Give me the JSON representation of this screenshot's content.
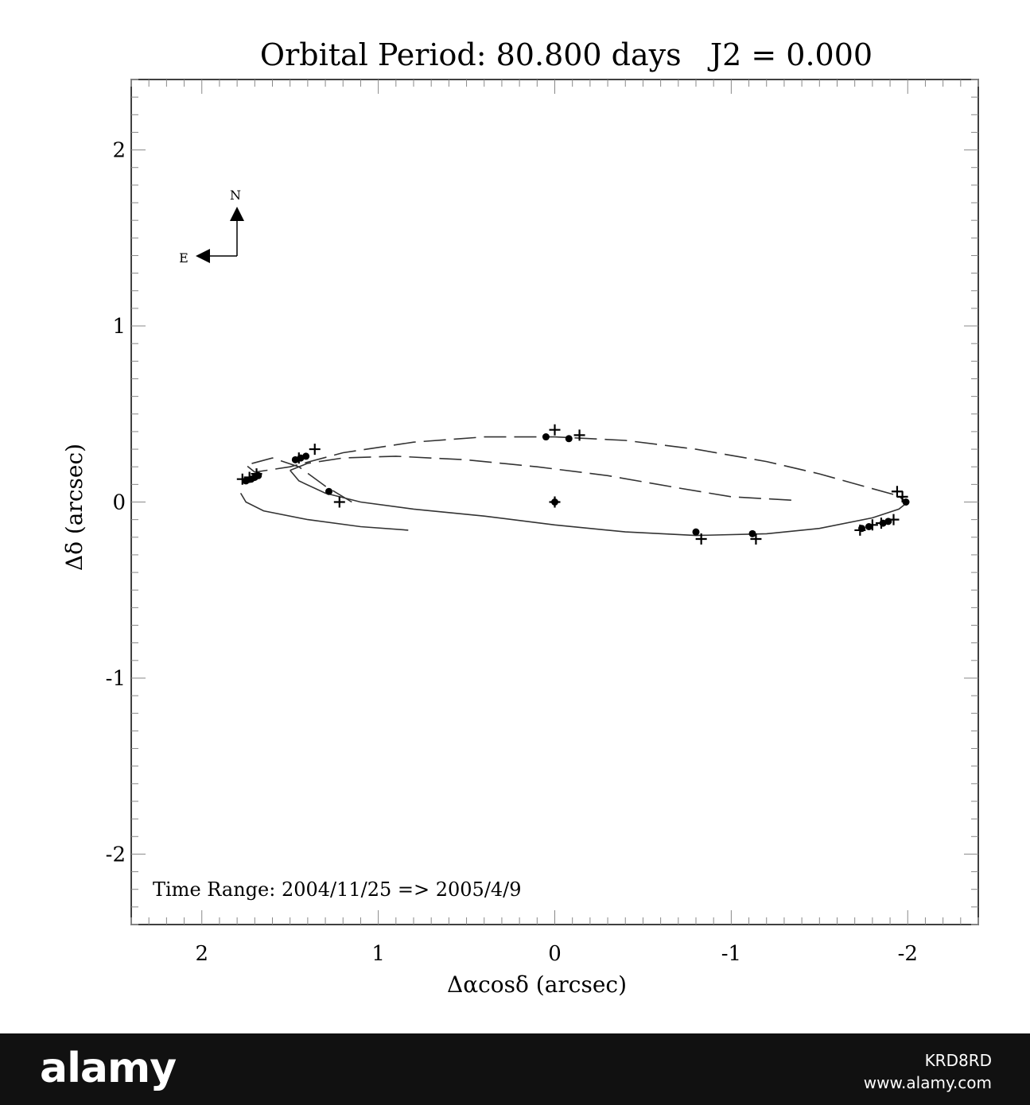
{
  "chart_data": {
    "type": "scatter",
    "title": "Orbital Period: 80.800 days   J2 = 0.000",
    "xlabel": "Δαcosδ (arcsec)",
    "ylabel": "Δδ (arcsec)",
    "xlim": [
      2.4,
      -2.4
    ],
    "ylim": [
      -2.4,
      2.4
    ],
    "xticks": [
      2,
      1,
      0,
      -1,
      -2
    ],
    "xtick_labels": [
      "2",
      "1",
      "0",
      "-1",
      "-2"
    ],
    "yticks": [
      2,
      1,
      0,
      -1,
      -2
    ],
    "ytick_labels": [
      "2",
      "1",
      "0",
      "-1",
      "-2"
    ],
    "annotation": "Time Range: 2004/11/25 => 2005/4/9",
    "compass": {
      "north": "N",
      "east": "E"
    },
    "orbit_dashed": [
      [
        1.15,
        0.0
      ],
      [
        1.3,
        0.09
      ],
      [
        1.45,
        0.2
      ],
      [
        1.6,
        0.25
      ],
      [
        1.75,
        0.21
      ],
      [
        1.7,
        0.17
      ],
      [
        1.5,
        0.2
      ],
      [
        1.2,
        0.28
      ],
      [
        0.8,
        0.34
      ],
      [
        0.4,
        0.37
      ],
      [
        0.0,
        0.37
      ],
      [
        -0.4,
        0.35
      ],
      [
        -0.8,
        0.3
      ],
      [
        -1.2,
        0.23
      ],
      [
        -1.5,
        0.16
      ],
      [
        -1.75,
        0.09
      ],
      [
        -1.93,
        0.04
      ],
      [
        -2.0,
        0.0
      ]
    ],
    "orbit_dashed_inner": [
      [
        1.5,
        0.18
      ],
      [
        1.4,
        0.22
      ],
      [
        1.2,
        0.25
      ],
      [
        0.9,
        0.26
      ],
      [
        0.5,
        0.24
      ],
      [
        0.1,
        0.2
      ],
      [
        -0.3,
        0.15
      ],
      [
        -0.7,
        0.08
      ],
      [
        -1.0,
        0.03
      ],
      [
        -1.35,
        0.01
      ]
    ],
    "orbit_solid": [
      [
        -2.0,
        0.0
      ],
      [
        -1.95,
        -0.04
      ],
      [
        -1.8,
        -0.09
      ],
      [
        -1.5,
        -0.15
      ],
      [
        -1.2,
        -0.18
      ],
      [
        -0.8,
        -0.19
      ],
      [
        -0.4,
        -0.17
      ],
      [
        0.0,
        -0.13
      ],
      [
        0.4,
        -0.08
      ],
      [
        0.8,
        -0.04
      ],
      [
        1.1,
        0.0
      ],
      [
        1.3,
        0.05
      ],
      [
        1.45,
        0.12
      ],
      [
        1.5,
        0.18
      ]
    ],
    "orbit_solid_tail": [
      [
        1.78,
        0.05
      ],
      [
        1.75,
        0.0
      ],
      [
        1.65,
        -0.05
      ],
      [
        1.4,
        -0.1
      ],
      [
        1.1,
        -0.14
      ],
      [
        0.83,
        -0.16
      ]
    ],
    "observed_points": [
      [
        1.75,
        0.12
      ],
      [
        1.72,
        0.13
      ],
      [
        1.7,
        0.14
      ],
      [
        1.68,
        0.15
      ],
      [
        1.47,
        0.24
      ],
      [
        1.44,
        0.25
      ],
      [
        1.41,
        0.26
      ],
      [
        1.28,
        0.06
      ],
      [
        0.05,
        0.37
      ],
      [
        -0.08,
        0.36
      ],
      [
        -0.8,
        -0.17
      ],
      [
        -1.12,
        -0.18
      ],
      [
        -1.74,
        -0.15
      ],
      [
        -1.78,
        -0.14
      ],
      [
        -1.86,
        -0.12
      ],
      [
        -1.89,
        -0.11
      ],
      [
        -1.99,
        0.0
      ],
      [
        0.0,
        0.0
      ]
    ],
    "predicted_points": [
      [
        1.77,
        0.13
      ],
      [
        1.73,
        0.14
      ],
      [
        1.69,
        0.16
      ],
      [
        1.45,
        0.25
      ],
      [
        1.36,
        0.3
      ],
      [
        1.22,
        0.0
      ],
      [
        0.0,
        0.41
      ],
      [
        -0.14,
        0.38
      ],
      [
        -0.83,
        -0.21
      ],
      [
        -1.14,
        -0.21
      ],
      [
        -1.73,
        -0.16
      ],
      [
        -1.8,
        -0.13
      ],
      [
        -1.85,
        -0.12
      ],
      [
        -1.92,
        -0.1
      ],
      [
        -1.94,
        0.06
      ],
      [
        -1.97,
        0.03
      ],
      [
        0.0,
        0.0
      ]
    ]
  },
  "footer": {
    "logo": "alamy",
    "image_id": "KRD8RD",
    "url": "www.alamy.com"
  }
}
